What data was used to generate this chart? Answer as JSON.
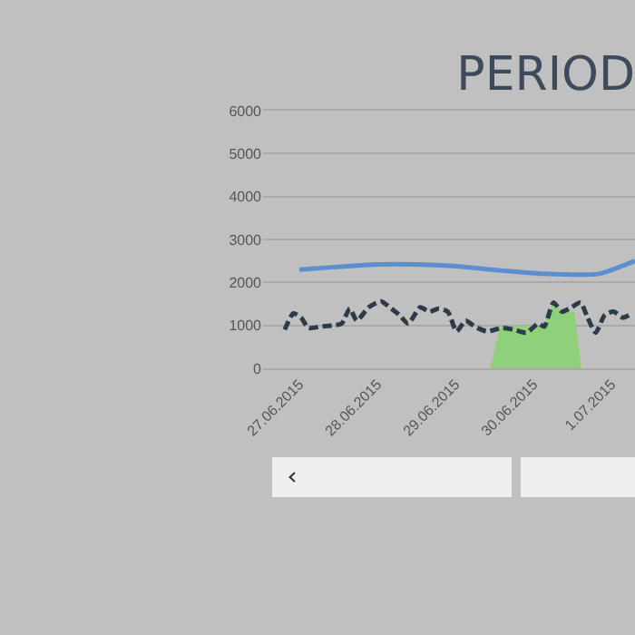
{
  "chart_data": {
    "type": "line",
    "title": "PERIOD",
    "xlim": [
      "2015-06-26T12:50",
      "2015-07-01T07:15"
    ],
    "xticks": [
      {
        "value": "2015-06-27",
        "label": "27.06.2015"
      },
      {
        "value": "2015-06-28",
        "label": "28.06.2015"
      },
      {
        "value": "2015-06-29",
        "label": "29.06.2015"
      },
      {
        "value": "2015-06-30",
        "label": "30.06.2015"
      },
      {
        "value": "2015-07-01",
        "label": "1.07.2015"
      }
    ],
    "ylim": [
      0,
      6000
    ],
    "yticks": [
      0,
      1000,
      2000,
      3000,
      4000,
      5000,
      6000
    ],
    "grid": "y",
    "legend": false,
    "marker": "none",
    "series": [
      {
        "color": "#5b8fd0",
        "line_style": "solid",
        "x": [
          "2015-06-27T00:00",
          "2015-06-28T00:00",
          "2015-06-28T12:00",
          "2015-06-28T23:30",
          "2015-06-29T10:30",
          "2015-06-30T03:20",
          "2015-06-30T20:10",
          "2015-07-01T07:15"
        ],
        "values": [
          2300,
          2420,
          2420,
          2380,
          2300,
          2200,
          2200,
          2500
        ]
      },
      {
        "color": "#2d3a4a",
        "line_style": "dashed",
        "x": [
          "2015-06-26T19:30",
          "2015-06-26T22:10",
          "2015-06-27T00:30",
          "2015-06-27T02:50",
          "2015-06-27T06:30",
          "2015-06-27T10:10",
          "2015-06-27T13:00",
          "2015-06-27T15:30",
          "2015-06-27T17:40",
          "2015-06-27T21:20",
          "2015-06-28T01:10",
          "2015-06-28T03:50",
          "2015-06-28T06:40",
          "2015-06-28T09:30",
          "2015-06-28T13:10",
          "2015-06-28T16:00",
          "2015-06-28T18:50",
          "2015-06-28T21:40",
          "2015-06-29T00:20",
          "2015-06-29T03:10",
          "2015-06-29T06:00",
          "2015-06-29T09:40",
          "2015-06-29T14:20",
          "2015-06-29T18:00",
          "2015-06-29T21:50",
          "2015-06-30T01:30",
          "2015-06-30T03:20",
          "2015-06-30T06:10",
          "2015-06-30T08:50",
          "2015-06-30T11:40",
          "2015-06-30T14:30",
          "2015-06-30T16:40",
          "2015-06-30T19:10",
          "2015-06-30T22:00",
          "2015-07-01T00:40",
          "2015-07-01T03:30",
          "2015-07-01T06:20"
        ],
        "values": [
          900,
          1280,
          1180,
          940,
          970,
          1000,
          1040,
          1390,
          1110,
          1420,
          1560,
          1420,
          1250,
          1040,
          1420,
          1320,
          1390,
          1320,
          860,
          1110,
          970,
          860,
          940,
          900,
          830,
          1040,
          970,
          1530,
          1320,
          1420,
          1530,
          1180,
          830,
          1250,
          1320,
          1180,
          1280
        ]
      },
      {
        "type": "area",
        "color": "#8fd07a",
        "x": [
          "2015-06-29T11:00",
          "2015-06-29T14:00",
          "2015-06-29T21:50",
          "2015-06-30T03:20",
          "2015-06-30T06:10",
          "2015-06-30T08:50",
          "2015-06-30T12:20",
          "2015-06-30T14:30"
        ],
        "values": [
          0,
          950,
          970,
          960,
          1500,
          1300,
          1300,
          0
        ]
      }
    ]
  }
}
